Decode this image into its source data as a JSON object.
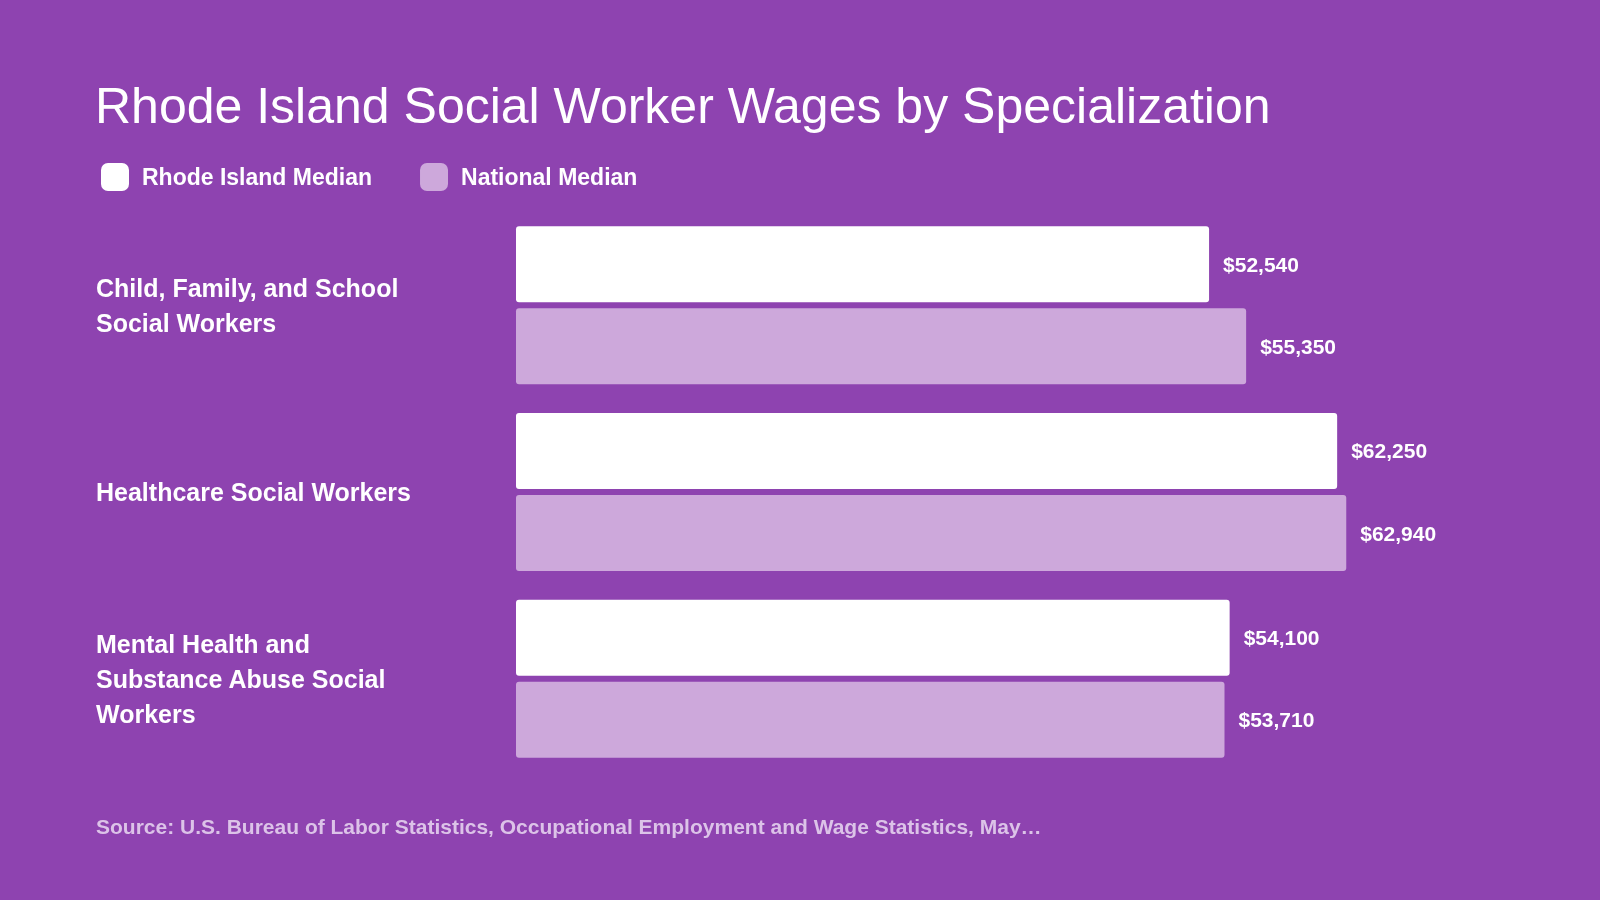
{
  "chart_data": {
    "type": "bar",
    "orientation": "horizontal",
    "title": "Rhode Island Social Worker Wages by Specialization",
    "categories": [
      "Child, Family, and School Social Workers",
      "Healthcare Social Workers",
      "Mental Health and Substance Abuse Social Workers"
    ],
    "series": [
      {
        "name": "Rhode Island Median",
        "color": "#ffffff",
        "values": [
          52540,
          62250,
          54100
        ],
        "value_labels": [
          "$52,540",
          "$62,250",
          "$54,100"
        ]
      },
      {
        "name": "National Median",
        "color": "#cda8db",
        "values": [
          55350,
          62940,
          53710
        ],
        "value_labels": [
          "$55,350",
          "$62,940",
          "$53,710"
        ]
      }
    ],
    "tick_labels": "y",
    "grid": false,
    "legend": "top left",
    "annotations": [
      "Source: U.S. Bureau of Labor Statistics, Occupational Employment and Wage Statistics, May…"
    ]
  }
}
